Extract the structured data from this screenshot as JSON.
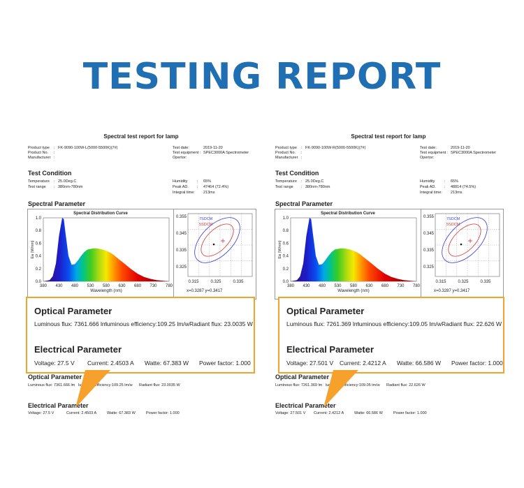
{
  "page": {
    "title": "TESTING REPORT"
  },
  "common": {
    "report_title": "Spectral test report for lamp",
    "product_type_label": "Product type",
    "product_no_label": "Product No.",
    "manufacturer_label": "Manufacturer",
    "test_date_label": "Test date:",
    "test_equipment_label": "Test equipment :",
    "operator_label": "Opertor:",
    "test_condition_heading": "Test Condition",
    "temperature_label": "Temperature",
    "test_range_label": "Test range",
    "humidity_label": "Humidity",
    "peak_ad_label": "Peak AD.",
    "integral_time_label": "Integral  time:",
    "spectral_parameter_heading": "Spectral Parameter",
    "chart_title": "Spectral Distribution Curve",
    "optical_heading": "Optical Parameter",
    "electrical_heading": "Electrical Parameter",
    "colon": ":"
  },
  "reports": [
    {
      "product_type": "FK-9090-100W-L(5000-5500K)(7#)",
      "test_date": "2019-11-20",
      "test_equipment": "SPEC3000A Spectrometer",
      "temperature": "25.0Deg.C",
      "test_range": "380nm-780nm",
      "humidity": "65%",
      "peak_ad": "47464 (72.4%)",
      "integral_time": "213ms",
      "cie_readout": "x=0.3287  y=0.3417",
      "optical": {
        "luminous_flux": "Luminous flux: 7361.666 lm",
        "luminous_efficiency": "luminous efficiency:109.25 lm/w",
        "radiant_flux": "Radiant flux: 23.0035 W"
      },
      "electrical": {
        "voltage": "Voltage: 27.5  V",
        "current": "Current: 2.4503  A",
        "watte": "Watte: 67.383  W",
        "power_factor": "Power factor: 1.000"
      }
    },
    {
      "product_type": "FK-9090-100W-R(5000-5500K)(7#)",
      "test_date": "2019-11-20",
      "test_equipment": "SPEC3000A Spectrometer",
      "temperature": "25.0Deg.C",
      "test_range": "380nm-780nm",
      "humidity": "65%",
      "peak_ad": "48814 (74.5%)",
      "integral_time": "213ms",
      "cie_readout": "x=0.3287  y=0.3417",
      "optical": {
        "luminous_flux": "Luminous flux: 7261.369 lm",
        "luminous_efficiency": "luminous efficiency:109.05 lm/w",
        "radiant_flux": "Radiant flux: 22.626 W"
      },
      "electrical": {
        "voltage": "Voltage: 27.501  V",
        "current": "Current: 2.4212  A",
        "watte": "Watte: 66.586  W",
        "power_factor": "Power factor: 1.000"
      }
    }
  ],
  "chart_data": [
    {
      "type": "area",
      "title": "Spectral Distribution Curve",
      "xlabel": "Wavelength  (nm)",
      "ylabel": "Ea (W/nm)",
      "xlim": [
        380,
        780
      ],
      "ylim": [
        0,
        1.0
      ],
      "x_ticks": [
        "380",
        "430",
        "480",
        "530",
        "580",
        "630",
        "680",
        "730",
        "780"
      ],
      "y_ticks": [
        "0.0",
        "0.2",
        "0.4",
        "0.6",
        "0.8",
        "1.0"
      ],
      "x": [
        380,
        400,
        410,
        420,
        430,
        440,
        445,
        450,
        460,
        470,
        480,
        490,
        500,
        510,
        520,
        530,
        540,
        550,
        560,
        570,
        580,
        590,
        600,
        610,
        620,
        630,
        640,
        650,
        660,
        680,
        700,
        720,
        740,
        760,
        780
      ],
      "series": [
        {
          "values": [
            0.0,
            0.02,
            0.08,
            0.28,
            0.72,
            1.0,
            0.98,
            0.78,
            0.4,
            0.26,
            0.27,
            0.33,
            0.4,
            0.46,
            0.5,
            0.51,
            0.52,
            0.52,
            0.51,
            0.5,
            0.48,
            0.46,
            0.43,
            0.39,
            0.35,
            0.31,
            0.27,
            0.23,
            0.19,
            0.12,
            0.07,
            0.04,
            0.02,
            0.01,
            0.0
          ]
        }
      ]
    },
    {
      "type": "scatter",
      "x_ticks": [
        "0.315",
        "0.325",
        "0.335"
      ],
      "y_ticks": [
        "0.355",
        "0.345",
        "0.335",
        "0.325"
      ],
      "legend": [
        "7SDCM",
        "5SDCM"
      ],
      "xlim": [
        0.31,
        0.34
      ],
      "ylim": [
        0.32,
        0.36
      ],
      "point": [
        0.3287,
        0.3417
      ]
    }
  ]
}
